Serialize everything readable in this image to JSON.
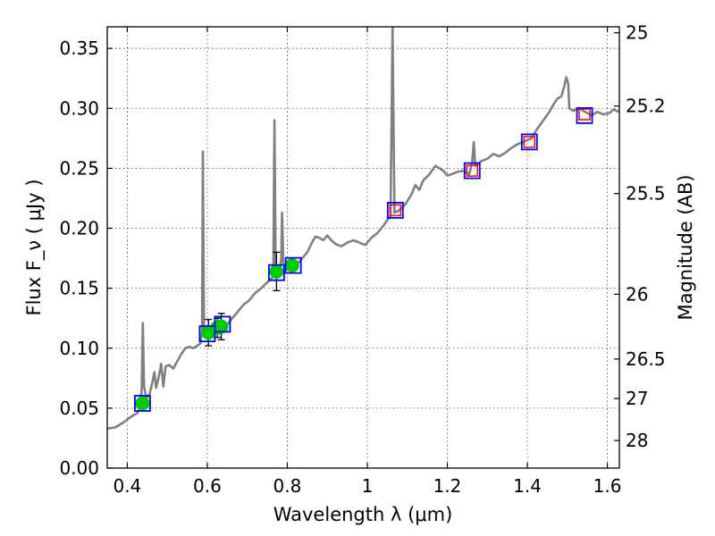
{
  "chart_data": {
    "type": "line",
    "title": "",
    "xlabel": "Wavelength  λ (μm)",
    "ylabel": "Flux  F_ν  ( μJy )",
    "ylabel_right": "Magnitude (AB)",
    "xlim": [
      0.35,
      1.63
    ],
    "ylim": [
      0.0,
      0.368
    ],
    "grid": true,
    "x_ticks": [
      {
        "value": 0.4,
        "label": "0.4"
      },
      {
        "value": 0.6,
        "label": "0.6"
      },
      {
        "value": 0.8,
        "label": "0.8"
      },
      {
        "value": 1.0,
        "label": "1"
      },
      {
        "value": 1.2,
        "label": "1.2"
      },
      {
        "value": 1.4,
        "label": "1.4"
      },
      {
        "value": 1.6,
        "label": "1.6"
      }
    ],
    "y_ticks": [
      {
        "value": 0.0,
        "label": "0.00"
      },
      {
        "value": 0.05,
        "label": "0.05"
      },
      {
        "value": 0.1,
        "label": "0.10"
      },
      {
        "value": 0.15,
        "label": "0.15"
      },
      {
        "value": 0.2,
        "label": "0.20"
      },
      {
        "value": 0.25,
        "label": "0.25"
      },
      {
        "value": 0.3,
        "label": "0.30"
      },
      {
        "value": 0.35,
        "label": "0.35"
      }
    ],
    "y2_ticks": [
      {
        "flux": 0.363,
        "label": "25"
      },
      {
        "flux": 0.302,
        "label": "25.2"
      },
      {
        "flux": 0.229,
        "label": "25.5"
      },
      {
        "flux": 0.145,
        "label": "26"
      },
      {
        "flux": 0.091,
        "label": "26.5"
      },
      {
        "flux": 0.058,
        "label": "27"
      },
      {
        "flux": 0.023,
        "label": "28"
      }
    ],
    "colors": {
      "spectrum": "#808080",
      "model_box": "#0000ff",
      "observed_box": "#ff0000",
      "observed_point": "#00cc00",
      "errorbar": "#000000"
    },
    "series": [
      {
        "kind": "spectrum",
        "points": [
          [
            0.35,
            0.033
          ],
          [
            0.37,
            0.034
          ],
          [
            0.39,
            0.038
          ],
          [
            0.41,
            0.043
          ],
          [
            0.425,
            0.046
          ],
          [
            0.432,
            0.05
          ],
          [
            0.436,
            0.065
          ],
          [
            0.439,
            0.121
          ],
          [
            0.442,
            0.068
          ],
          [
            0.448,
            0.058
          ],
          [
            0.455,
            0.061
          ],
          [
            0.462,
            0.07
          ],
          [
            0.468,
            0.08
          ],
          [
            0.472,
            0.067
          ],
          [
            0.478,
            0.075
          ],
          [
            0.485,
            0.087
          ],
          [
            0.49,
            0.068
          ],
          [
            0.496,
            0.085
          ],
          [
            0.505,
            0.086
          ],
          [
            0.515,
            0.083
          ],
          [
            0.525,
            0.089
          ],
          [
            0.535,
            0.095
          ],
          [
            0.545,
            0.1
          ],
          [
            0.555,
            0.101
          ],
          [
            0.565,
            0.1
          ],
          [
            0.575,
            0.102
          ],
          [
            0.583,
            0.104
          ],
          [
            0.587,
            0.115
          ],
          [
            0.589,
            0.264
          ],
          [
            0.592,
            0.11
          ],
          [
            0.6,
            0.108
          ],
          [
            0.615,
            0.111
          ],
          [
            0.63,
            0.114
          ],
          [
            0.645,
            0.118
          ],
          [
            0.66,
            0.124
          ],
          [
            0.675,
            0.13
          ],
          [
            0.69,
            0.136
          ],
          [
            0.705,
            0.14
          ],
          [
            0.72,
            0.146
          ],
          [
            0.735,
            0.15
          ],
          [
            0.75,
            0.155
          ],
          [
            0.76,
            0.158
          ],
          [
            0.765,
            0.16
          ],
          [
            0.768,
            0.29
          ],
          [
            0.771,
            0.16
          ],
          [
            0.78,
            0.163
          ],
          [
            0.785,
            0.175
          ],
          [
            0.787,
            0.213
          ],
          [
            0.79,
            0.17
          ],
          [
            0.8,
            0.168
          ],
          [
            0.81,
            0.165
          ],
          [
            0.82,
            0.169
          ],
          [
            0.83,
            0.172
          ],
          [
            0.84,
            0.176
          ],
          [
            0.85,
            0.18
          ],
          [
            0.86,
            0.187
          ],
          [
            0.87,
            0.193
          ],
          [
            0.88,
            0.192
          ],
          [
            0.89,
            0.19
          ],
          [
            0.9,
            0.194
          ],
          [
            0.91,
            0.19
          ],
          [
            0.92,
            0.187
          ],
          [
            0.935,
            0.185
          ],
          [
            0.95,
            0.188
          ],
          [
            0.965,
            0.19
          ],
          [
            0.98,
            0.188
          ],
          [
            0.995,
            0.186
          ],
          [
            1.01,
            0.192
          ],
          [
            1.025,
            0.196
          ],
          [
            1.04,
            0.202
          ],
          [
            1.05,
            0.207
          ],
          [
            1.058,
            0.21
          ],
          [
            1.061,
            0.3
          ],
          [
            1.063,
            0.368
          ],
          [
            1.065,
            0.3
          ],
          [
            1.068,
            0.213
          ],
          [
            1.08,
            0.215
          ],
          [
            1.095,
            0.22
          ],
          [
            1.11,
            0.228
          ],
          [
            1.12,
            0.236
          ],
          [
            1.13,
            0.232
          ],
          [
            1.14,
            0.24
          ],
          [
            1.155,
            0.245
          ],
          [
            1.17,
            0.252
          ],
          [
            1.18,
            0.25
          ],
          [
            1.19,
            0.248
          ],
          [
            1.2,
            0.244
          ],
          [
            1.21,
            0.245
          ],
          [
            1.225,
            0.247
          ],
          [
            1.24,
            0.248
          ],
          [
            1.255,
            0.245
          ],
          [
            1.262,
            0.255
          ],
          [
            1.266,
            0.272
          ],
          [
            1.27,
            0.252
          ],
          [
            1.285,
            0.256
          ],
          [
            1.3,
            0.258
          ],
          [
            1.315,
            0.262
          ],
          [
            1.33,
            0.26
          ],
          [
            1.345,
            0.263
          ],
          [
            1.36,
            0.267
          ],
          [
            1.375,
            0.27
          ],
          [
            1.39,
            0.272
          ],
          [
            1.41,
            0.275
          ],
          [
            1.425,
            0.283
          ],
          [
            1.44,
            0.29
          ],
          [
            1.455,
            0.297
          ],
          [
            1.465,
            0.303
          ],
          [
            1.475,
            0.308
          ],
          [
            1.485,
            0.31
          ],
          [
            1.492,
            0.318
          ],
          [
            1.497,
            0.326
          ],
          [
            1.502,
            0.321
          ],
          [
            1.505,
            0.3
          ],
          [
            1.515,
            0.298
          ],
          [
            1.53,
            0.3
          ],
          [
            1.545,
            0.297
          ],
          [
            1.56,
            0.294
          ],
          [
            1.575,
            0.297
          ],
          [
            1.59,
            0.295
          ],
          [
            1.605,
            0.296
          ],
          [
            1.615,
            0.299
          ],
          [
            1.63,
            0.297
          ]
        ]
      },
      {
        "kind": "model_photometry",
        "points": [
          [
            0.438,
            0.054
          ],
          [
            0.6,
            0.112
          ],
          [
            0.638,
            0.12
          ],
          [
            0.773,
            0.163
          ],
          [
            0.815,
            0.169
          ],
          [
            1.07,
            0.215
          ],
          [
            1.262,
            0.248
          ],
          [
            1.405,
            0.272
          ],
          [
            1.543,
            0.294
          ]
        ]
      },
      {
        "kind": "observed_photometry_ir",
        "points": [
          [
            1.07,
            0.215
          ],
          [
            1.262,
            0.248
          ],
          [
            1.405,
            0.272
          ],
          [
            1.543,
            0.295
          ]
        ]
      },
      {
        "kind": "observed_photometry_optical",
        "points": [
          {
            "x": 0.438,
            "y": 0.054,
            "yerr": 0.004
          },
          {
            "x": 0.603,
            "y": 0.113,
            "yerr": 0.011
          },
          {
            "x": 0.625,
            "y": 0.117,
            "yerr": 0.008
          },
          {
            "x": 0.635,
            "y": 0.118,
            "yerr": 0.011
          },
          {
            "x": 0.773,
            "y": 0.164,
            "yerr": 0.016
          },
          {
            "x": 0.812,
            "y": 0.169,
            "yerr": 0.003
          }
        ]
      }
    ]
  }
}
